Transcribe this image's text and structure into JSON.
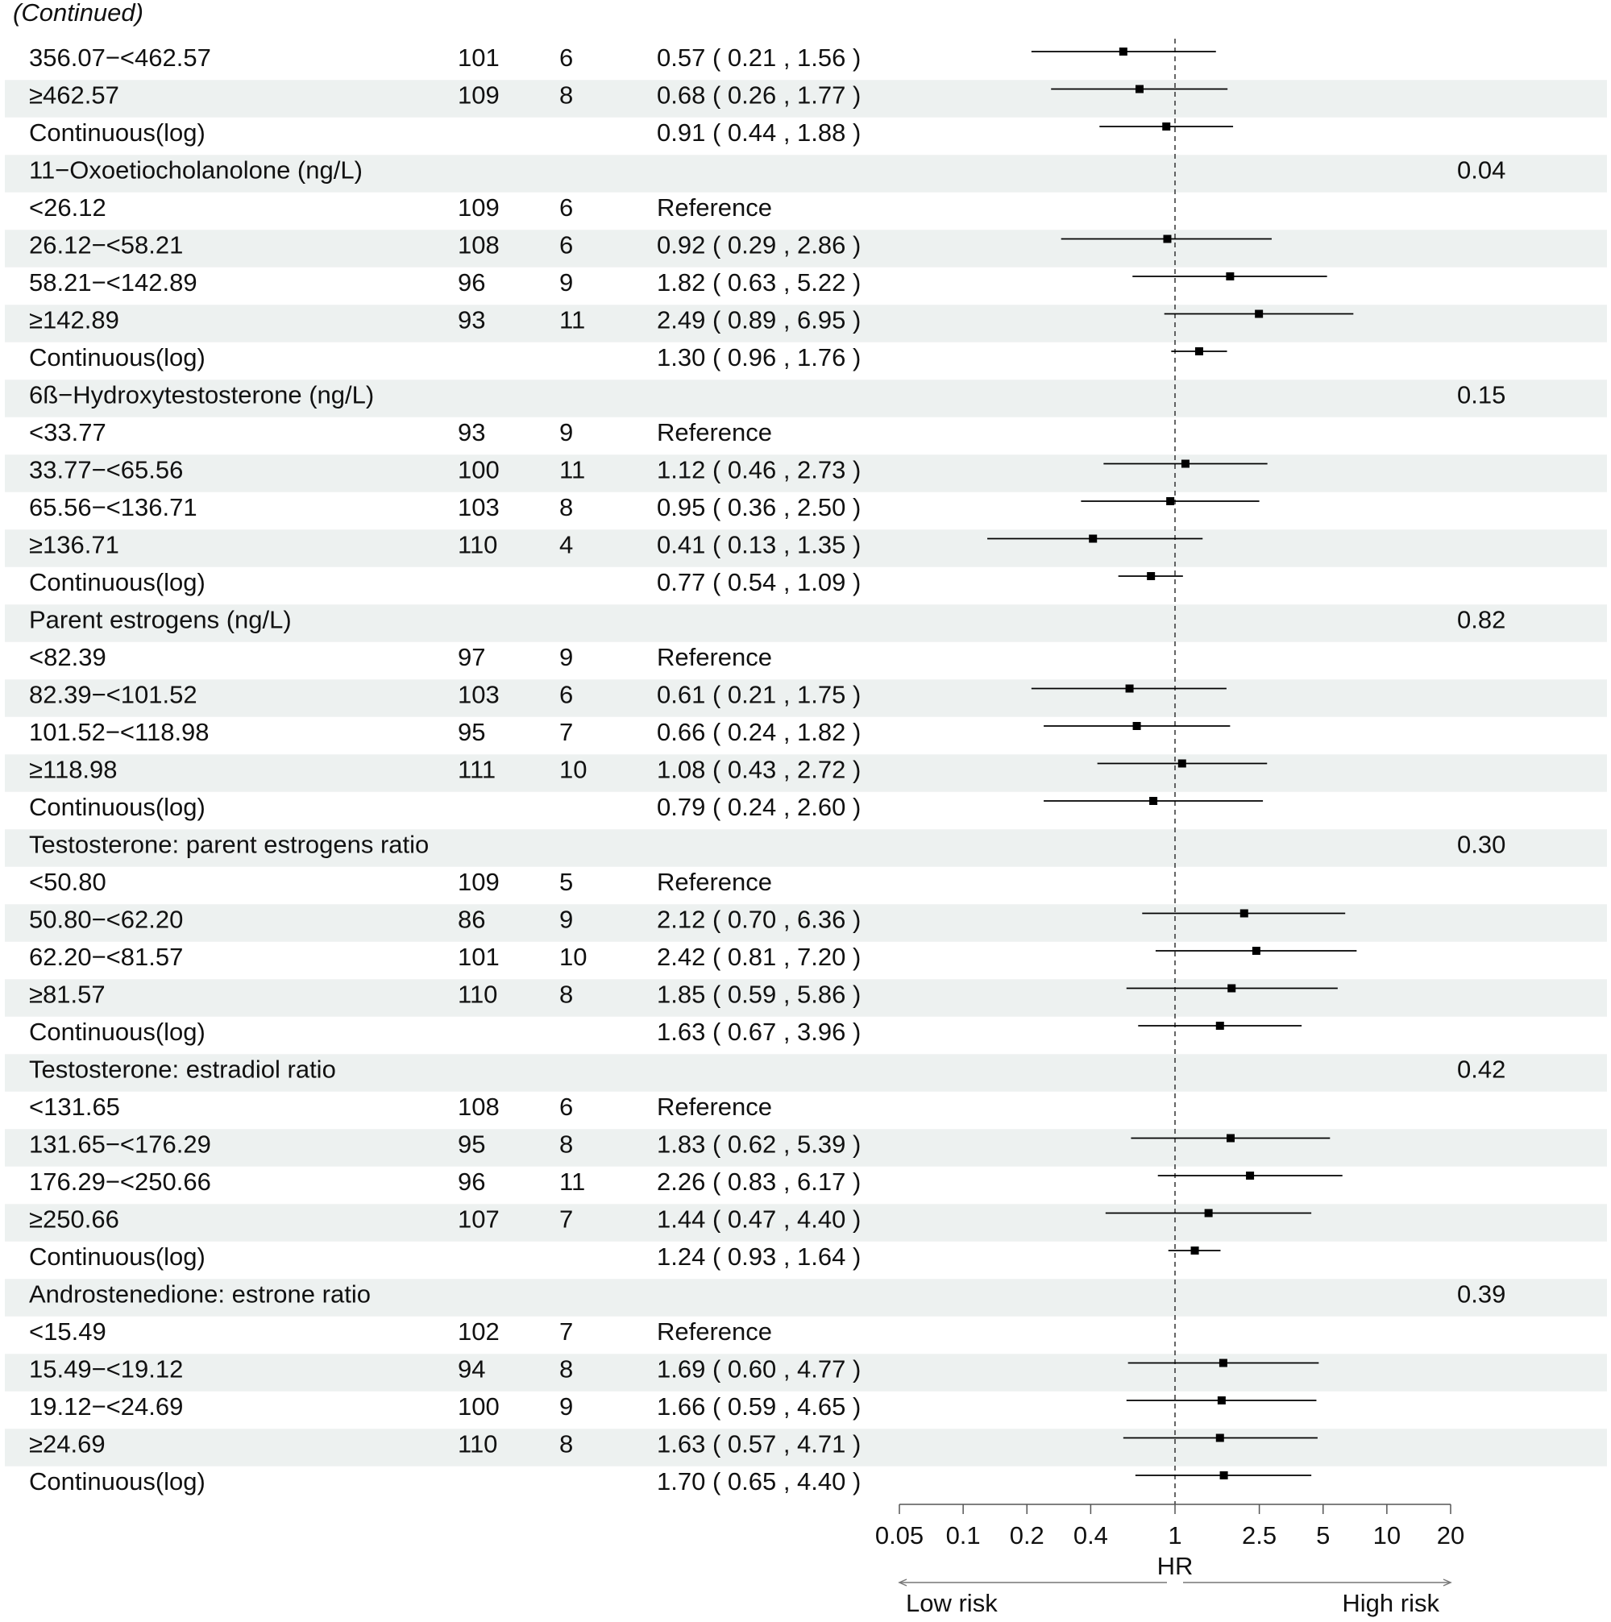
{
  "chart_data": {
    "type": "forest",
    "note": "(Continued)",
    "x_label": "HR",
    "left_arrow_label": "Low risk",
    "right_arrow_label": "High risk",
    "log_x": true,
    "xlim": [
      0.05,
      20
    ],
    "xticks": [
      0.05,
      0.1,
      0.2,
      0.4,
      1,
      2.5,
      5,
      10,
      20
    ],
    "refline": 1,
    "color": "#000000",
    "shade_color": "#edf1f0",
    "rows": [
      {
        "label": "356.07−<462.57",
        "n": 101,
        "cases": 6,
        "hr": 0.57,
        "lower": 0.21,
        "upper": 1.56,
        "value_label": "0.57 ( 0.21 , 1.56 )"
      },
      {
        "label": "≥462.57",
        "n": 109,
        "cases": 8,
        "hr": 0.68,
        "lower": 0.26,
        "upper": 1.77,
        "value_label": "0.68 ( 0.26 , 1.77 )"
      },
      {
        "label": "Continuous(log)",
        "hr": 0.91,
        "lower": 0.44,
        "upper": 1.88,
        "value_label": "0.91 ( 0.44 , 1.88 )"
      },
      {
        "label": "11−Oxoetiocholanolone (ng/L)",
        "p": "0.04"
      },
      {
        "label": "<26.12",
        "n": 109,
        "cases": 6,
        "value_label": "Reference"
      },
      {
        "label": "26.12−<58.21",
        "n": 108,
        "cases": 6,
        "hr": 0.92,
        "lower": 0.29,
        "upper": 2.86,
        "value_label": "0.92 ( 0.29 , 2.86 )"
      },
      {
        "label": "58.21−<142.89",
        "n": 96,
        "cases": 9,
        "hr": 1.82,
        "lower": 0.63,
        "upper": 5.22,
        "value_label": "1.82 ( 0.63 , 5.22 )"
      },
      {
        "label": "≥142.89",
        "n": 93,
        "cases": 11,
        "hr": 2.49,
        "lower": 0.89,
        "upper": 6.95,
        "value_label": "2.49 ( 0.89 , 6.95 )"
      },
      {
        "label": "Continuous(log)",
        "hr": 1.3,
        "lower": 0.96,
        "upper": 1.76,
        "value_label": "1.30 ( 0.96 , 1.76 )"
      },
      {
        "label": "6ß−Hydroxytestosterone (ng/L)",
        "p": "0.15"
      },
      {
        "label": "<33.77",
        "n": 93,
        "cases": 9,
        "value_label": "Reference"
      },
      {
        "label": "33.77−<65.56",
        "n": 100,
        "cases": 11,
        "hr": 1.12,
        "lower": 0.46,
        "upper": 2.73,
        "value_label": "1.12 ( 0.46 , 2.73 )"
      },
      {
        "label": "65.56−<136.71",
        "n": 103,
        "cases": 8,
        "hr": 0.95,
        "lower": 0.36,
        "upper": 2.5,
        "value_label": "0.95 ( 0.36 , 2.50 )"
      },
      {
        "label": "≥136.71",
        "n": 110,
        "cases": 4,
        "hr": 0.41,
        "lower": 0.13,
        "upper": 1.35,
        "value_label": "0.41 ( 0.13 , 1.35 )"
      },
      {
        "label": "Continuous(log)",
        "hr": 0.77,
        "lower": 0.54,
        "upper": 1.09,
        "value_label": "0.77 ( 0.54 , 1.09 )"
      },
      {
        "label": "Parent estrogens (ng/L)",
        "p": "0.82"
      },
      {
        "label": "<82.39",
        "n": 97,
        "cases": 9,
        "value_label": "Reference"
      },
      {
        "label": "82.39−<101.52",
        "n": 103,
        "cases": 6,
        "hr": 0.61,
        "lower": 0.21,
        "upper": 1.75,
        "value_label": "0.61 ( 0.21 , 1.75 )"
      },
      {
        "label": "101.52−<118.98",
        "n": 95,
        "cases": 7,
        "hr": 0.66,
        "lower": 0.24,
        "upper": 1.82,
        "value_label": "0.66 ( 0.24 , 1.82 )"
      },
      {
        "label": "≥118.98",
        "n": 111,
        "cases": 10,
        "hr": 1.08,
        "lower": 0.43,
        "upper": 2.72,
        "value_label": "1.08 ( 0.43 , 2.72 )"
      },
      {
        "label": "Continuous(log)",
        "hr": 0.79,
        "lower": 0.24,
        "upper": 2.6,
        "value_label": "0.79 ( 0.24 , 2.60 )"
      },
      {
        "label": "Testosterone: parent estrogens ratio",
        "p": "0.30"
      },
      {
        "label": "<50.80",
        "n": 109,
        "cases": 5,
        "value_label": "Reference"
      },
      {
        "label": "50.80−<62.20",
        "n": 86,
        "cases": 9,
        "hr": 2.12,
        "lower": 0.7,
        "upper": 6.36,
        "value_label": "2.12 ( 0.70 , 6.36 )"
      },
      {
        "label": "62.20−<81.57",
        "n": 101,
        "cases": 10,
        "hr": 2.42,
        "lower": 0.81,
        "upper": 7.2,
        "value_label": "2.42 ( 0.81 , 7.20 )"
      },
      {
        "label": "≥81.57",
        "n": 110,
        "cases": 8,
        "hr": 1.85,
        "lower": 0.59,
        "upper": 5.86,
        "value_label": "1.85 ( 0.59 , 5.86 )"
      },
      {
        "label": "Continuous(log)",
        "hr": 1.63,
        "lower": 0.67,
        "upper": 3.96,
        "value_label": "1.63 ( 0.67 , 3.96 )"
      },
      {
        "label": "Testosterone: estradiol ratio",
        "p": "0.42"
      },
      {
        "label": "<131.65",
        "n": 108,
        "cases": 6,
        "value_label": "Reference"
      },
      {
        "label": "131.65−<176.29",
        "n": 95,
        "cases": 8,
        "hr": 1.83,
        "lower": 0.62,
        "upper": 5.39,
        "value_label": "1.83 ( 0.62 , 5.39 )"
      },
      {
        "label": "176.29−<250.66",
        "n": 96,
        "cases": 11,
        "hr": 2.26,
        "lower": 0.83,
        "upper": 6.17,
        "value_label": "2.26 ( 0.83 , 6.17 )"
      },
      {
        "label": "≥250.66",
        "n": 107,
        "cases": 7,
        "hr": 1.44,
        "lower": 0.47,
        "upper": 4.4,
        "value_label": "1.44 ( 0.47 , 4.40 )"
      },
      {
        "label": "Continuous(log)",
        "hr": 1.24,
        "lower": 0.93,
        "upper": 1.64,
        "value_label": "1.24 ( 0.93 , 1.64 )"
      },
      {
        "label": "Androstenedione: estrone ratio",
        "p": "0.39"
      },
      {
        "label": "<15.49",
        "n": 102,
        "cases": 7,
        "value_label": "Reference"
      },
      {
        "label": "15.49−<19.12",
        "n": 94,
        "cases": 8,
        "hr": 1.69,
        "lower": 0.6,
        "upper": 4.77,
        "value_label": "1.69 ( 0.60 , 4.77 )"
      },
      {
        "label": "19.12−<24.69",
        "n": 100,
        "cases": 9,
        "hr": 1.66,
        "lower": 0.59,
        "upper": 4.65,
        "value_label": "1.66 ( 0.59 , 4.65 )"
      },
      {
        "label": "≥24.69",
        "n": 110,
        "cases": 8,
        "hr": 1.63,
        "lower": 0.57,
        "upper": 4.71,
        "value_label": "1.63 ( 0.57 , 4.71 )"
      },
      {
        "label": "Continuous(log)",
        "hr": 1.7,
        "lower": 0.65,
        "upper": 4.4,
        "value_label": "1.70 ( 0.65 , 4.40 )"
      }
    ]
  }
}
